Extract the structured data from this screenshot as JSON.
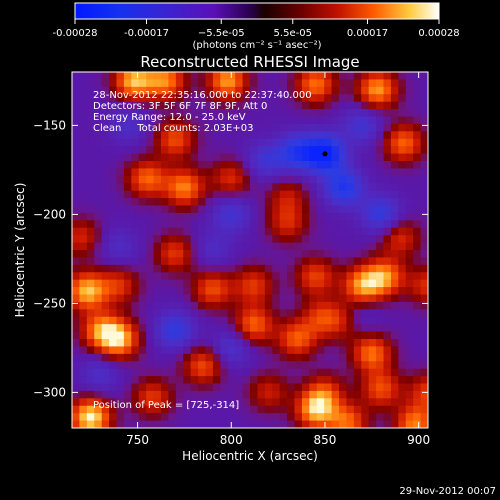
{
  "chart_data": {
    "type": "heatmap",
    "title": "Reconstructed RHESSI Image",
    "xlabel": "Heliocentric X (arcsec)",
    "ylabel": "Heliocentric Y (arcsec)",
    "xlim": [
      715,
      905
    ],
    "ylim": [
      -320,
      -120
    ],
    "x_ticks": [
      750,
      800,
      850,
      900
    ],
    "y_ticks": [
      -150,
      -200,
      -250,
      -300
    ],
    "colorbar": {
      "range": [
        -0.00028,
        0.00028
      ],
      "tick_values": [
        -0.00028,
        -0.00017,
        -5.5e-05,
        5.5e-05,
        0.00017,
        0.00028
      ],
      "tick_labels": [
        "-0.00028",
        "-0.00017",
        "−5.5e-05",
        "5.5e-05",
        "0.00017",
        "0.00028"
      ],
      "units": "(photons cm⁻² s⁻¹ asec⁻²)"
    },
    "annotations": [
      "28-Nov-2012 22:35:16.000 to 22:37:40.000",
      "Detectors: 3F 5F 6F 7F 8F 9F, Att 0",
      "Energy Range: 12.0 - 25.0 keV",
      "Clean     Total counts: 2.03E+03"
    ],
    "peak_label": "Position of Peak = [725,-314]",
    "peak_marker": [
      850,
      -166
    ],
    "grid": false,
    "blobs": [
      {
        "x": 748,
        "y": -125,
        "v": 0.00024
      },
      {
        "x": 765,
        "y": -125,
        "v": 0.0002
      },
      {
        "x": 798,
        "y": -125,
        "v": 0.00022
      },
      {
        "x": 845,
        "y": -127,
        "v": 0.00019
      },
      {
        "x": 878,
        "y": -130,
        "v": 0.00022
      },
      {
        "x": 892,
        "y": -160,
        "v": 0.00018
      },
      {
        "x": 770,
        "y": -158,
        "v": 0.00016
      },
      {
        "x": 755,
        "y": -180,
        "v": 0.00018
      },
      {
        "x": 775,
        "y": -185,
        "v": 0.0002
      },
      {
        "x": 800,
        "y": -180,
        "v": 0.00013
      },
      {
        "x": 830,
        "y": -190,
        "v": 0.0001
      },
      {
        "x": 830,
        "y": -205,
        "v": 0.00012
      },
      {
        "x": 720,
        "y": -213,
        "v": 0.00012
      },
      {
        "x": 723,
        "y": -243,
        "v": 0.00024
      },
      {
        "x": 740,
        "y": -240,
        "v": 0.00013
      },
      {
        "x": 770,
        "y": -222,
        "v": 0.00014
      },
      {
        "x": 790,
        "y": -242,
        "v": 0.00016
      },
      {
        "x": 812,
        "y": -262,
        "v": 0.00018
      },
      {
        "x": 812,
        "y": -240,
        "v": 0.00014
      },
      {
        "x": 845,
        "y": -235,
        "v": 0.00015
      },
      {
        "x": 870,
        "y": -240,
        "v": 0.00021
      },
      {
        "x": 882,
        "y": -235,
        "v": 0.0002
      },
      {
        "x": 905,
        "y": -240,
        "v": 0.00013
      },
      {
        "x": 890,
        "y": -213,
        "v": 0.00013
      },
      {
        "x": 860,
        "y": -260,
        "v": 0.00011
      },
      {
        "x": 740,
        "y": -270,
        "v": 0.00024
      },
      {
        "x": 730,
        "y": -265,
        "v": 0.00018
      },
      {
        "x": 785,
        "y": -285,
        "v": 0.00016
      },
      {
        "x": 835,
        "y": -270,
        "v": 0.00017
      },
      {
        "x": 848,
        "y": -258,
        "v": 0.00013
      },
      {
        "x": 875,
        "y": -278,
        "v": 0.00019
      },
      {
        "x": 880,
        "y": -298,
        "v": 0.00016
      },
      {
        "x": 850,
        "y": -300,
        "v": 0.00013
      },
      {
        "x": 820,
        "y": -300,
        "v": 0.00011
      },
      {
        "x": 758,
        "y": -303,
        "v": 0.00014
      },
      {
        "x": 845,
        "y": -310,
        "v": 0.00023
      },
      {
        "x": 862,
        "y": -317,
        "v": 0.00018
      },
      {
        "x": 725,
        "y": -314,
        "v": 0.00028
      },
      {
        "x": 898,
        "y": -318,
        "v": 0.0002
      },
      {
        "x": 905,
        "y": -300,
        "v": 0.00014
      },
      {
        "x": 850,
        "y": -166,
        "v": -0.00028
      },
      {
        "x": 835,
        "y": -165,
        "v": -0.00018
      },
      {
        "x": 860,
        "y": -185,
        "v": -0.0002
      },
      {
        "x": 880,
        "y": -200,
        "v": -0.00016
      },
      {
        "x": 818,
        "y": -170,
        "v": -0.00012
      },
      {
        "x": 870,
        "y": -150,
        "v": -0.00012
      },
      {
        "x": 800,
        "y": -200,
        "v": -0.00012
      },
      {
        "x": 770,
        "y": -265,
        "v": -0.00016
      },
      {
        "x": 800,
        "y": -275,
        "v": -0.00011
      },
      {
        "x": 790,
        "y": -220,
        "v": -8e-05
      },
      {
        "x": 730,
        "y": -290,
        "v": -9e-05
      },
      {
        "x": 740,
        "y": -218,
        "v": -8e-05
      },
      {
        "x": 868,
        "y": -258,
        "v": -7e-05
      },
      {
        "x": 745,
        "y": -150,
        "v": -9e-05
      }
    ]
  },
  "footer": {
    "date": "29-Nov-2012 00:07"
  }
}
